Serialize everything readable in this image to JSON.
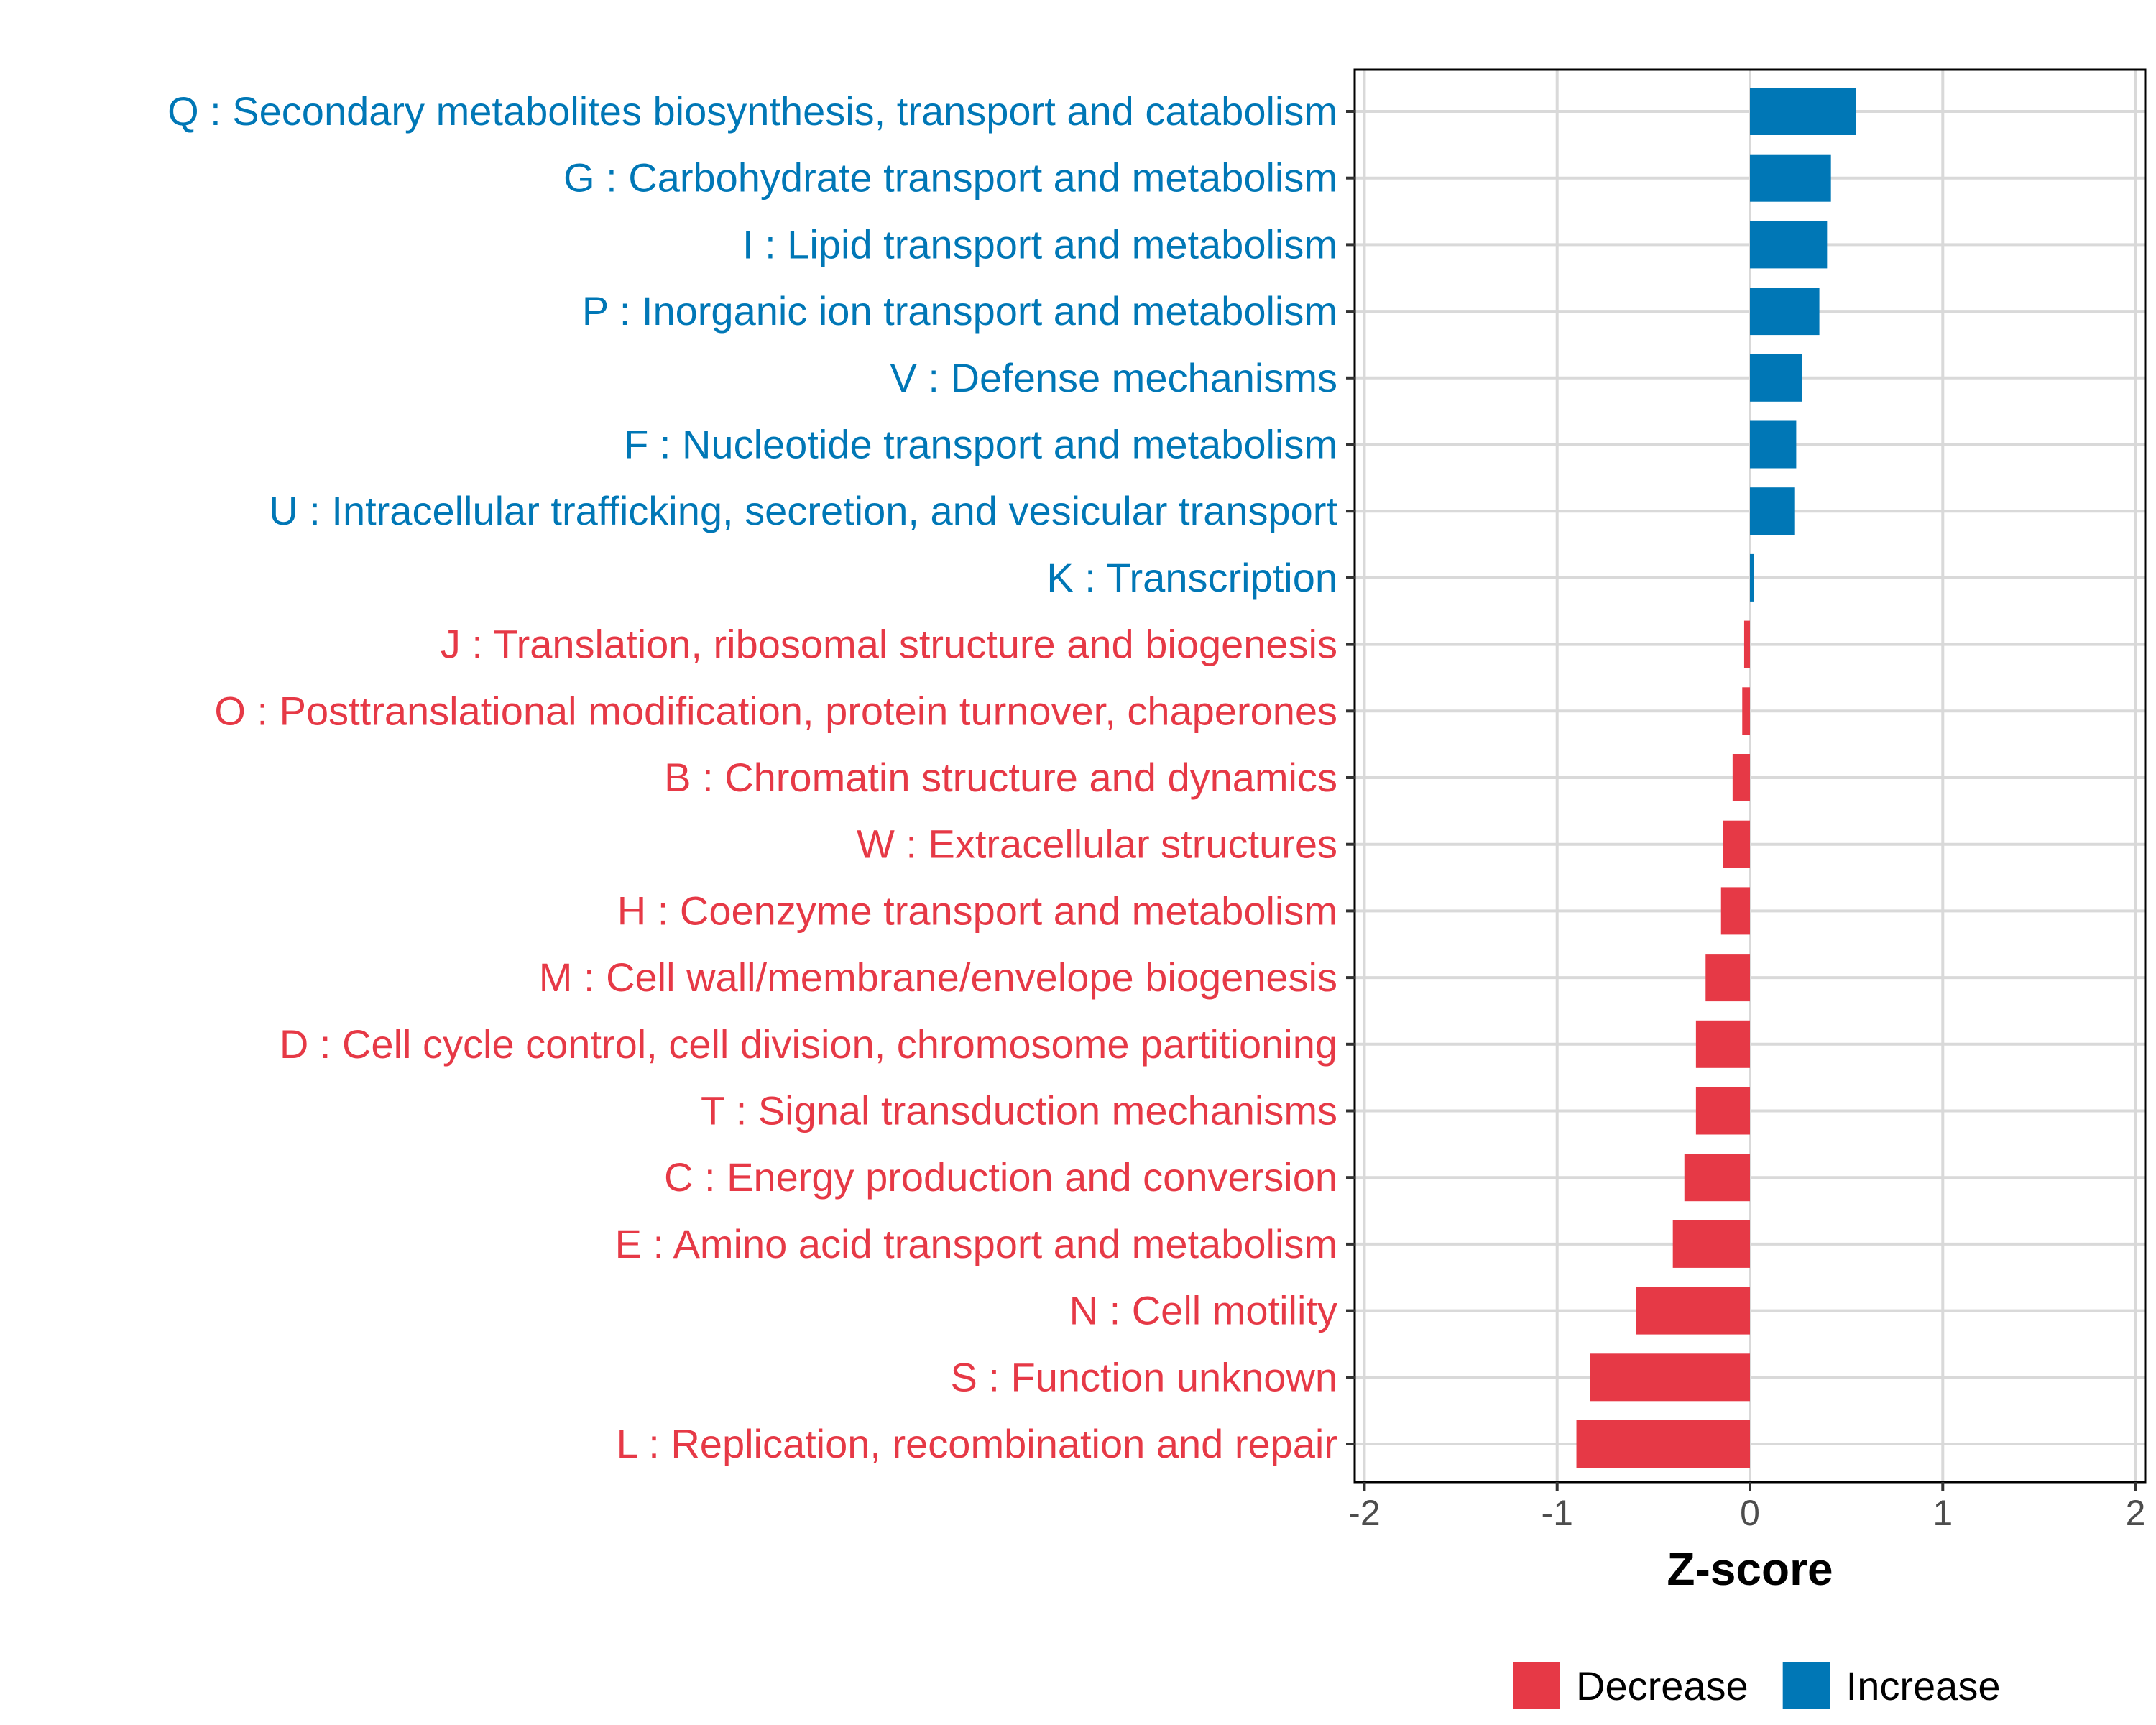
{
  "chart_data": {
    "type": "bar",
    "orientation": "horizontal",
    "title": "",
    "xlabel": "Z-score",
    "ylabel": "",
    "xlim": [
      -2.05,
      2.05
    ],
    "xticks": [
      -2,
      -1,
      0,
      1,
      2
    ],
    "xtick_labels": [
      "-2",
      "-1",
      "0",
      "1",
      "2"
    ],
    "grid": true,
    "legend_position": "bottom",
    "categories": [
      "Q : Secondary metabolites biosynthesis, transport and catabolism",
      "G : Carbohydrate transport and metabolism",
      "I : Lipid transport and metabolism",
      "P : Inorganic ion transport and metabolism",
      "V : Defense mechanisms",
      "F : Nucleotide transport and metabolism",
      "U : Intracellular trafficking, secretion, and vesicular transport",
      "K : Transcription",
      "J : Translation, ribosomal structure and biogenesis",
      "O : Posttranslational modification, protein turnover, chaperones",
      "B : Chromatin structure and dynamics",
      "W : Extracellular structures",
      "H : Coenzyme transport and metabolism",
      "M : Cell wall/membrane/envelope biogenesis",
      "D : Cell cycle control, cell division, chromosome partitioning",
      "T : Signal transduction mechanisms",
      "C : Energy production and conversion",
      "E : Amino acid transport and metabolism",
      "N : Cell motility",
      "S : Function unknown",
      "L : Replication, recombination and repair"
    ],
    "values": [
      0.55,
      0.42,
      0.4,
      0.36,
      0.27,
      0.24,
      0.23,
      0.02,
      -0.03,
      -0.04,
      -0.09,
      -0.14,
      -0.15,
      -0.23,
      -0.28,
      -0.28,
      -0.34,
      -0.4,
      -0.59,
      -0.83,
      -0.9
    ],
    "groups": [
      "Increase",
      "Increase",
      "Increase",
      "Increase",
      "Increase",
      "Increase",
      "Increase",
      "Increase",
      "Decrease",
      "Decrease",
      "Decrease",
      "Decrease",
      "Decrease",
      "Decrease",
      "Decrease",
      "Decrease",
      "Decrease",
      "Decrease",
      "Decrease",
      "Decrease",
      "Decrease"
    ],
    "legend": [
      {
        "name": "Decrease",
        "color": "#E63946"
      },
      {
        "name": "Increase",
        "color": "#0077B6"
      }
    ]
  },
  "colors": {
    "increase": "#0077B6",
    "decrease": "#E63946",
    "grid": "#d9d9d9",
    "axis": "#000000",
    "tick_text": "#4d4d4d"
  }
}
